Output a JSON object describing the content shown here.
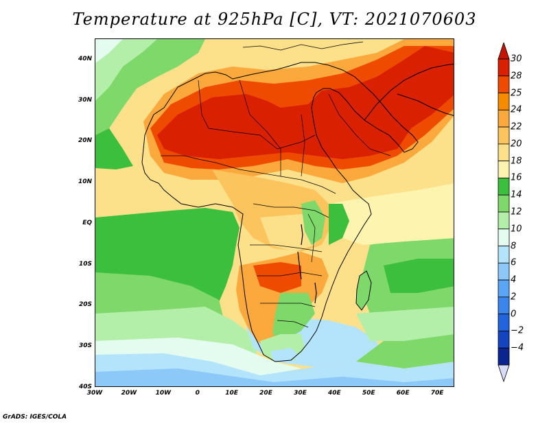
{
  "title": "Temperature at 925hPa [C], VT: 2021070603",
  "credit": "GrADS: IGES/COLA",
  "map": {
    "lon_range": [
      -30,
      75
    ],
    "lat_range": [
      -40,
      45
    ],
    "x_ticks": [
      {
        "lon": -30,
        "label": "30W"
      },
      {
        "lon": -20,
        "label": "20W"
      },
      {
        "lon": -10,
        "label": "10W"
      },
      {
        "lon": 0,
        "label": "0"
      },
      {
        "lon": 10,
        "label": "10E"
      },
      {
        "lon": 20,
        "label": "20E"
      },
      {
        "lon": 30,
        "label": "30E"
      },
      {
        "lon": 40,
        "label": "40E"
      },
      {
        "lon": 50,
        "label": "50E"
      },
      {
        "lon": 60,
        "label": "60E"
      },
      {
        "lon": 70,
        "label": "70E"
      }
    ],
    "y_ticks": [
      {
        "lat": 40,
        "label": "40N"
      },
      {
        "lat": 30,
        "label": "30N"
      },
      {
        "lat": 20,
        "label": "20N"
      },
      {
        "lat": 10,
        "label": "10N"
      },
      {
        "lat": 0,
        "label": "EQ"
      },
      {
        "lat": -10,
        "label": "10S"
      },
      {
        "lat": -20,
        "label": "20S"
      },
      {
        "lat": -30,
        "label": "30S"
      },
      {
        "lat": -40,
        "label": "40S"
      }
    ]
  },
  "colorbar": {
    "levels": [
      {
        "label": "30",
        "color": "#d92000"
      },
      {
        "label": "28",
        "color": "#ee4a00"
      },
      {
        "label": "25",
        "color": "#f68a00"
      },
      {
        "label": "24",
        "color": "#fba83c"
      },
      {
        "label": "22",
        "color": "#fcc45c"
      },
      {
        "label": "20",
        "color": "#fde08a"
      },
      {
        "label": "18",
        "color": "#fdf4b0"
      },
      {
        "label": "16",
        "color": "#3cbf3c"
      },
      {
        "label": "14",
        "color": "#7ed86a"
      },
      {
        "label": "12",
        "color": "#b4efaa"
      },
      {
        "label": "10",
        "color": "#e4fcf0"
      },
      {
        "label": "8",
        "color": "#b4e4fc"
      },
      {
        "label": "6",
        "color": "#8cc8f8"
      },
      {
        "label": "4",
        "color": "#5aa6f4"
      },
      {
        "label": "2",
        "color": "#3a86ec"
      },
      {
        "label": "0",
        "color": "#2264dc"
      },
      {
        "label": "−2",
        "color": "#1444c0"
      },
      {
        "label": "−4",
        "color": "#0c2490"
      }
    ],
    "over_color": "#c41400",
    "under_color": "#d8dcf8"
  }
}
